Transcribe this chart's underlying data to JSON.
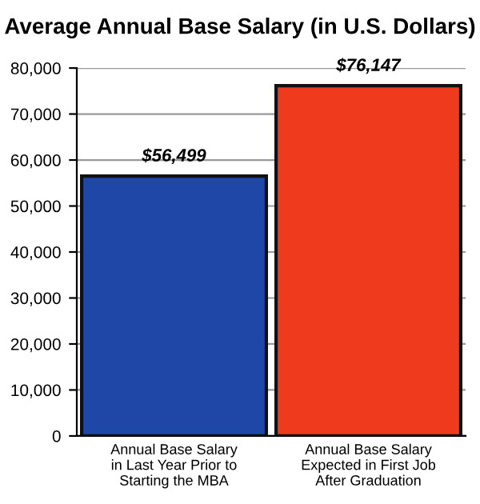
{
  "chart_data": {
    "type": "bar",
    "title": "Average Annual Base Salary (in U.S. Dollars)",
    "categories": [
      "Annual Base Salary\nin Last Year Prior to\nStarting the MBA",
      "Annual Base Salary\nExpected in First Job\nAfter Graduation"
    ],
    "values": [
      56499,
      76147
    ],
    "colors": [
      "#1e47a8",
      "#f03a1e"
    ],
    "value_labels": [
      "$56,499",
      "$76,147"
    ],
    "ylim": [
      0,
      80000
    ],
    "yticks": [
      {
        "value": 0,
        "label": "0"
      },
      {
        "value": 10000,
        "label": "10,000"
      },
      {
        "value": 20000,
        "label": "20,000"
      },
      {
        "value": 30000,
        "label": "30,000"
      },
      {
        "value": 40000,
        "label": "40,000"
      },
      {
        "value": 50000,
        "label": "50,000"
      },
      {
        "value": 60000,
        "label": "60,000"
      },
      {
        "value": 70000,
        "label": "70,000"
      },
      {
        "value": 80000,
        "label": "80,000"
      }
    ],
    "grid": "y"
  }
}
